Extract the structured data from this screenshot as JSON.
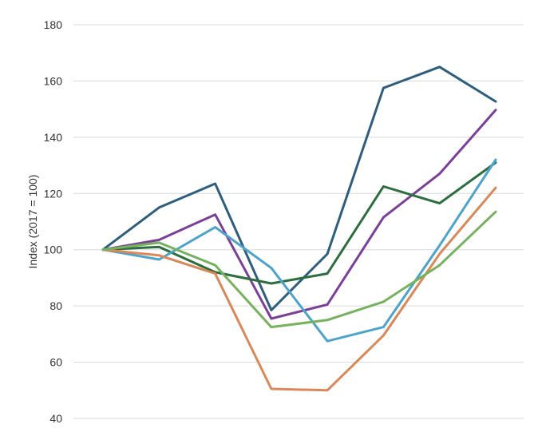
{
  "chart_data": {
    "type": "line",
    "title": "",
    "xlabel": "",
    "ylabel": "Index (2017 = 100)",
    "ylim": [
      40,
      180
    ],
    "yticks": [
      40,
      60,
      80,
      100,
      120,
      140,
      160,
      180
    ],
    "grid": true,
    "legend": "none",
    "x": [
      1,
      2,
      3,
      4,
      5,
      6,
      7,
      8
    ],
    "series": [
      {
        "color": "#2e5e7e",
        "values": [
          100,
          115,
          123.5,
          78.5,
          98.5,
          157.5,
          165,
          152.7
        ]
      },
      {
        "color": "#7b3f98",
        "values": [
          100,
          103.5,
          112.5,
          75.5,
          80.5,
          111.5,
          127,
          149.7
        ]
      },
      {
        "color": "#2d6e3e",
        "values": [
          100,
          101,
          92,
          88,
          91.5,
          122.5,
          116.5,
          131
        ]
      },
      {
        "color": "#4ea3cc",
        "values": [
          100,
          96.5,
          108,
          93.5,
          67.5,
          72.5,
          101.5,
          132
        ]
      },
      {
        "color": "#d9885a",
        "values": [
          100,
          98,
          91.5,
          50.5,
          50,
          69.5,
          98.5,
          122
        ]
      },
      {
        "color": "#76b25e",
        "values": [
          100,
          102.5,
          94.5,
          72.5,
          75,
          81.5,
          94.5,
          113.5
        ]
      }
    ]
  }
}
